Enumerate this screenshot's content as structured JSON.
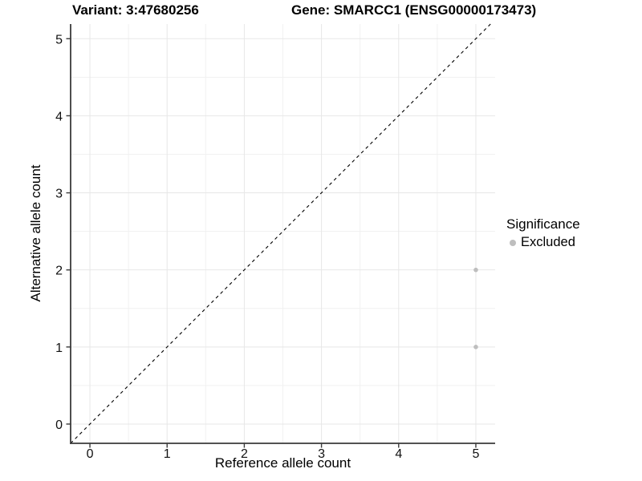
{
  "chart_data": {
    "type": "scatter",
    "titles": {
      "left": "Variant: 3:47680256",
      "right": "Gene: SMARCC1 (ENSG00000173473)"
    },
    "xlabel": "Reference allele count",
    "ylabel": "Alternative allele count",
    "x_ticks": [
      0,
      1,
      2,
      3,
      4,
      5
    ],
    "y_ticks": [
      0,
      1,
      2,
      3,
      4,
      5
    ],
    "xlim": [
      -0.25,
      5.25
    ],
    "ylim": [
      -0.25,
      5.19
    ],
    "grid": {
      "major": true,
      "minor": true
    },
    "identity_line": {
      "equation": "y = x",
      "style": "dashed",
      "color": "#000000"
    },
    "series": [
      {
        "name": "Excluded",
        "color": "#bebebe",
        "marker": "circle",
        "points": [
          [
            5,
            1
          ],
          [
            5,
            2
          ]
        ]
      }
    ],
    "legend": {
      "title": "Significance",
      "position": "right",
      "items": [
        {
          "label": "Excluded",
          "color": "#bebebe",
          "marker": "circle"
        }
      ]
    },
    "colors": {
      "background": "#ffffff",
      "grid_major": "#e7e7e7",
      "grid_minor": "#f1f1f1",
      "axis": "#3a3a3a",
      "text": "#111111"
    }
  }
}
